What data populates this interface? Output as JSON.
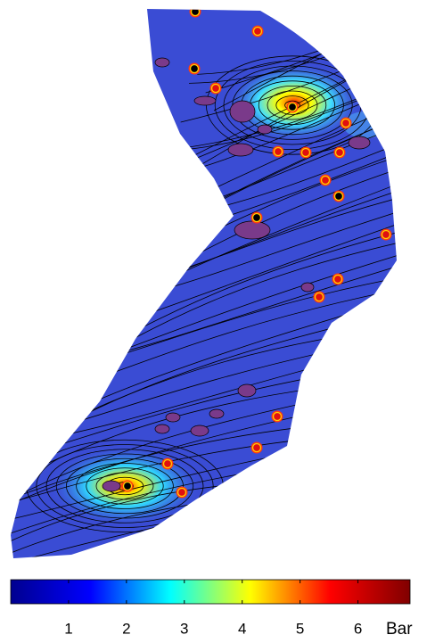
{
  "colorbar": {
    "label": "Bar",
    "range": [
      0,
      6.9
    ],
    "ticks": [
      1,
      2,
      3,
      4,
      5,
      6
    ],
    "colormap": [
      "#00008f",
      "#0000ff",
      "#00ffff",
      "#ffff00",
      "#ff0000",
      "#800000"
    ]
  }
}
